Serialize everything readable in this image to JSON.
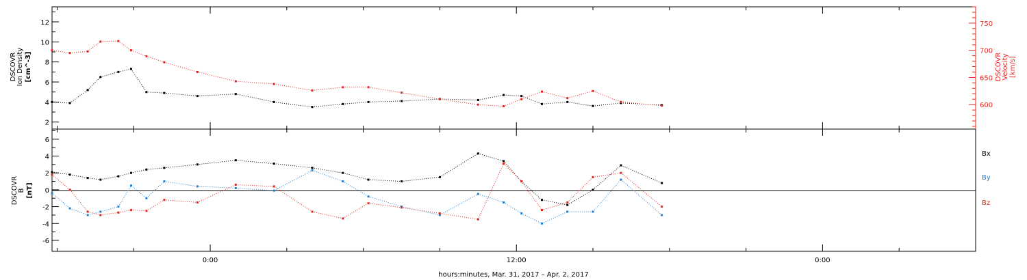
{
  "chart_data": [
    {
      "type": "scatter",
      "ylabel_lines": [
        "DSCOVR",
        "Ion Density",
        "[cm^-3]"
      ],
      "y2label_lines": [
        "DSCOVR",
        "Velocity",
        "[km/s]"
      ],
      "ylim": [
        1.3,
        13.5
      ],
      "y2lim": [
        555,
        780
      ],
      "yticks": [
        "2",
        "4",
        "6",
        "8",
        "10",
        "12"
      ],
      "y2ticks": [
        "600",
        "650",
        "700",
        "750"
      ],
      "colors": {
        "density": "#000000",
        "velocity": "#e8231e"
      },
      "x_hours": [
        -6.2,
        -5.5,
        -4.8,
        -4.3,
        -3.6,
        -3.1,
        -2.5,
        -1.8,
        -0.5,
        1.0,
        2.5,
        4.0,
        5.2,
        6.2,
        7.5,
        9.0,
        10.5,
        11.5,
        12.2,
        13.0,
        14.0,
        15.0,
        16.1,
        17.7
      ],
      "series": [
        {
          "role": "density",
          "values": [
            4.0,
            3.9,
            5.2,
            6.5,
            7.0,
            7.3,
            5.0,
            4.9,
            4.6,
            4.8,
            4.0,
            3.5,
            3.8,
            4.0,
            4.1,
            4.3,
            4.2,
            4.7,
            4.6,
            3.8,
            4.0,
            3.6,
            3.9,
            3.7
          ]
        },
        {
          "role": "velocity",
          "values": [
            700,
            695,
            698,
            716,
            717,
            700,
            689,
            678,
            660,
            643,
            638,
            626,
            632,
            632,
            622,
            610,
            600,
            597,
            610,
            624,
            612,
            625,
            605,
            598
          ]
        }
      ]
    },
    {
      "type": "scatter",
      "ylabel_lines": [
        "DSCOVR",
        "B",
        "[nT]"
      ],
      "ylim": [
        -7.3,
        7.2
      ],
      "yticks": [
        "-6",
        "-4",
        "-2",
        "0",
        "2",
        "4",
        "6"
      ],
      "legend": [
        "Bx",
        "By",
        "Bz"
      ],
      "colors": {
        "Bx": "#000000",
        "By": "#1d7fd7",
        "Bz": "#e8231e"
      },
      "x_hours": [
        -6.2,
        -5.5,
        -4.8,
        -4.3,
        -3.6,
        -3.1,
        -2.5,
        -1.8,
        -0.5,
        1.0,
        2.5,
        4.0,
        5.2,
        6.2,
        7.5,
        9.0,
        10.5,
        11.5,
        12.2,
        13.0,
        14.0,
        15.0,
        16.1,
        17.7
      ],
      "series": [
        {
          "name": "Bx",
          "values": [
            2.1,
            1.8,
            1.4,
            1.2,
            1.6,
            2.0,
            2.4,
            2.6,
            3.0,
            3.5,
            3.1,
            2.6,
            2.0,
            1.2,
            1.0,
            1.5,
            4.3,
            3.4,
            1.0,
            -1.2,
            -1.8,
            0.0,
            2.9,
            0.8
          ]
        },
        {
          "name": "By",
          "values": [
            -0.4,
            -2.2,
            -3.0,
            -2.6,
            -2.0,
            0.5,
            -1.0,
            1.0,
            0.4,
            0.2,
            -0.1,
            2.3,
            1.0,
            -0.8,
            -2.0,
            -3.0,
            -0.5,
            -1.5,
            -2.8,
            -4.0,
            -2.6,
            -2.6,
            1.2,
            -3.0
          ]
        },
        {
          "name": "Bz",
          "values": [
            1.8,
            0.0,
            -2.6,
            -3.0,
            -2.7,
            -2.4,
            -2.5,
            -1.2,
            -1.5,
            0.6,
            0.4,
            -2.6,
            -3.4,
            -1.6,
            -2.1,
            -2.8,
            -3.5,
            3.1,
            1.0,
            -2.4,
            -1.5,
            1.5,
            2.0,
            -2.0
          ]
        }
      ]
    }
  ],
  "x_axis": {
    "xlim_hours": [
      -6.2,
      30.0
    ],
    "tick_labels": [
      {
        "hour": 0,
        "label": "0:00"
      },
      {
        "hour": 12,
        "label": "12:00"
      },
      {
        "hour": 24,
        "label": "0:00"
      }
    ],
    "xlabel": "hours:minutes, Mar. 31, 2017 – Apr.  2, 2017"
  }
}
